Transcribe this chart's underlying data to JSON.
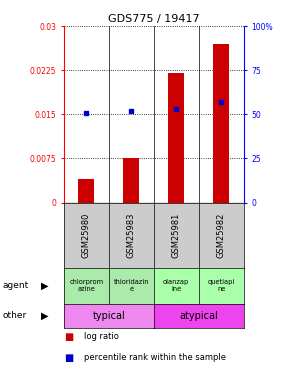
{
  "title": "GDS775 / 19417",
  "samples": [
    "GSM25980",
    "GSM25983",
    "GSM25981",
    "GSM25982"
  ],
  "log_ratio": [
    0.004,
    0.0075,
    0.022,
    0.027
  ],
  "percentile_rank_pct": [
    51,
    52,
    53,
    57
  ],
  "ylim_left": [
    0,
    0.03
  ],
  "ylim_right": [
    0,
    100
  ],
  "yticks_left": [
    0,
    0.0075,
    0.015,
    0.0225,
    0.03
  ],
  "ytick_labels_left": [
    "0",
    "0.0075",
    "0.015",
    "0.0225",
    "0.03"
  ],
  "yticks_right": [
    0,
    25,
    50,
    75,
    100
  ],
  "ytick_labels_right": [
    "0",
    "25",
    "50",
    "75",
    "100%"
  ],
  "agent_labels": [
    "chlorprom\nazine",
    "thioridazin\ne",
    "olanzap\nine",
    "quetiapi\nne"
  ],
  "agent_bg_colors": [
    "#aaeaaa",
    "#aaeaaa",
    "#aaffaa",
    "#aaffaa"
  ],
  "typical_color": "#ee88ee",
  "atypical_color": "#ee44ee",
  "gsm_bg_color": "#cccccc",
  "bar_color": "#cc0000",
  "dot_color": "#0000cc",
  "bar_width": 0.35
}
